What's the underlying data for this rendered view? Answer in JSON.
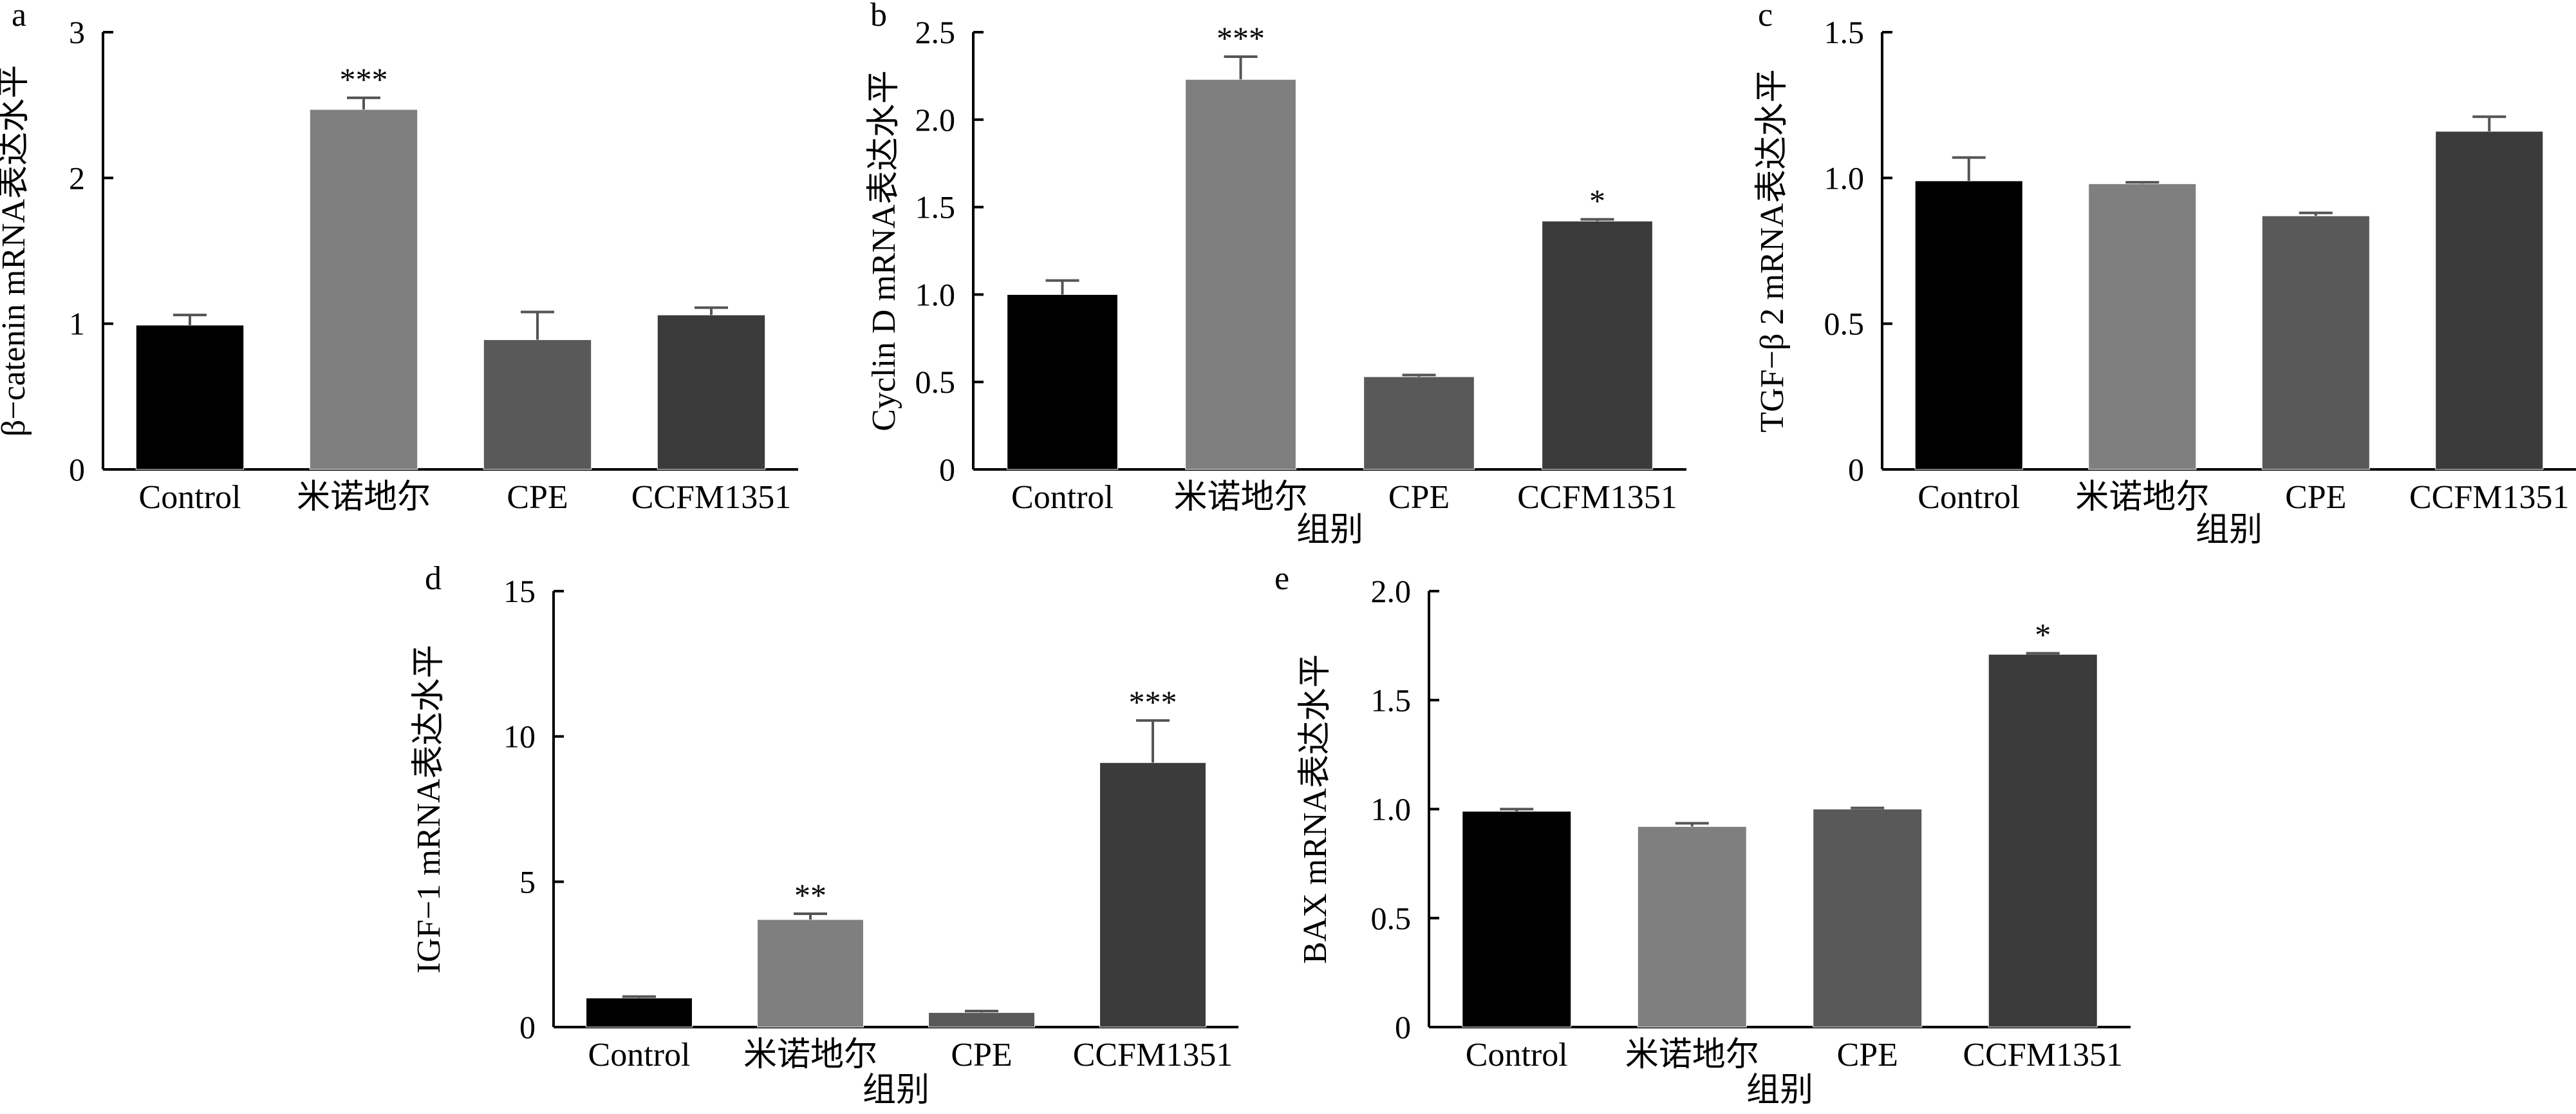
{
  "figure": {
    "colors": [
      "#000000",
      "#7f7f7f",
      "#595959",
      "#3b3b3b"
    ],
    "error_color": "#555555"
  },
  "chart_data": [
    {
      "type": "bar",
      "panel": "a",
      "categories": [
        "Control",
        "米诺地尔",
        "CPE",
        "CCFM1351"
      ],
      "values": [
        0.99,
        2.47,
        0.89,
        1.06
      ],
      "errors": [
        0.07,
        0.08,
        0.19,
        0.05
      ],
      "significance": [
        "",
        "***",
        "",
        ""
      ],
      "xlabel": "",
      "ylabel": "β−catenin mRNA表达水平",
      "ylim": [
        0,
        3
      ],
      "yticks": [
        0,
        1,
        2,
        3
      ],
      "ytick_labels": [
        "0",
        "1",
        "2",
        "3"
      ],
      "grid": false
    },
    {
      "type": "bar",
      "panel": "b",
      "categories": [
        "Control",
        "米诺地尔",
        "CPE",
        "CCFM1351"
      ],
      "values": [
        1.0,
        2.23,
        0.53,
        1.42
      ],
      "errors": [
        0.08,
        0.13,
        0.01,
        0.01
      ],
      "significance": [
        "",
        "***",
        "",
        "*"
      ],
      "xlabel": "组别",
      "ylabel": "Cyclin D mRNA表达水平",
      "ylim": [
        0,
        2.5
      ],
      "yticks": [
        0,
        0.5,
        1.0,
        1.5,
        2.0,
        2.5
      ],
      "ytick_labels": [
        "0",
        "0.5",
        "1.0",
        "1.5",
        "2.0",
        "2.5"
      ],
      "grid": false
    },
    {
      "type": "bar",
      "panel": "c",
      "categories": [
        "Control",
        "米诺地尔",
        "CPE",
        "CCFM1351"
      ],
      "values": [
        0.99,
        0.98,
        0.87,
        1.16
      ],
      "errors": [
        0.08,
        0.005,
        0.01,
        0.05
      ],
      "significance": [
        "",
        "",
        "",
        ""
      ],
      "xlabel": "组别",
      "ylabel": "TGF−β 2 mRNA表达水平",
      "ylim": [
        0,
        1.5
      ],
      "yticks": [
        0,
        0.5,
        1.0,
        1.5
      ],
      "ytick_labels": [
        "0",
        "0.5",
        "1.0",
        "1.5"
      ],
      "grid": false
    },
    {
      "type": "bar",
      "panel": "d",
      "categories": [
        "Control",
        "米诺地尔",
        "CPE",
        "CCFM1351"
      ],
      "values": [
        1.0,
        3.7,
        0.5,
        9.1
      ],
      "errors": [
        0.05,
        0.2,
        0.05,
        1.45
      ],
      "significance": [
        "",
        "**",
        "",
        "***"
      ],
      "xlabel": "组别",
      "ylabel": "IGF−1 mRNA表达水平",
      "ylim": [
        0,
        15
      ],
      "yticks": [
        0,
        5,
        10,
        15
      ],
      "ytick_labels": [
        "0",
        "5",
        "10",
        "15"
      ],
      "grid": false
    },
    {
      "type": "bar",
      "panel": "e",
      "categories": [
        "Control",
        "米诺地尔",
        "CPE",
        "CCFM1351"
      ],
      "values": [
        0.99,
        0.92,
        1.0,
        1.71
      ],
      "errors": [
        0.01,
        0.015,
        0.005,
        0.005
      ],
      "significance": [
        "",
        "",
        "",
        "*"
      ],
      "xlabel": "组别",
      "ylabel": "BAX mRNA表达水平",
      "ylim": [
        0,
        2.0
      ],
      "yticks": [
        0,
        0.5,
        1.0,
        1.5,
        2.0
      ],
      "ytick_labels": [
        "0",
        "0.5",
        "1.0",
        "1.5",
        "2.0"
      ],
      "grid": false
    }
  ]
}
